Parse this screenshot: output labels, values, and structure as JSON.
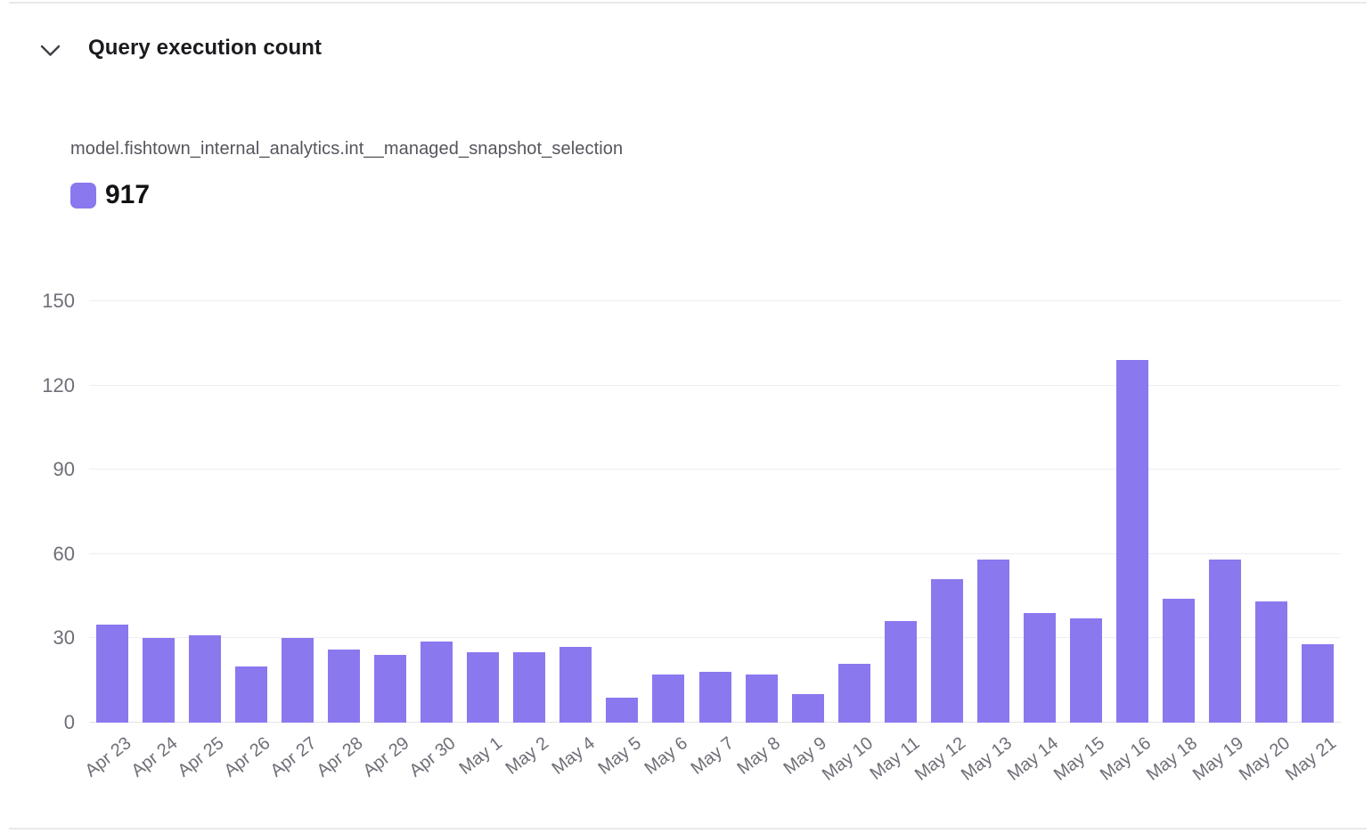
{
  "header": {
    "title": "Query execution count",
    "collapse_icon": "chevron-down"
  },
  "chart_data": {
    "type": "bar",
    "title": "Query execution count",
    "series_name": "model.fishtown_internal_analytics.int__managed_snapshot_selection",
    "legend_value": "917",
    "legend_position": "top-left",
    "categories": [
      "Apr 23",
      "Apr 24",
      "Apr 25",
      "Apr 26",
      "Apr 27",
      "Apr 28",
      "Apr 29",
      "Apr 30",
      "May 1",
      "May 2",
      "May 4",
      "May 5",
      "May 6",
      "May 7",
      "May 8",
      "May 9",
      "May 10",
      "May 11",
      "May 12",
      "May 13",
      "May 14",
      "May 15",
      "May 16",
      "May 18",
      "May 19",
      "May 20",
      "May 21"
    ],
    "values": [
      35,
      30,
      31,
      20,
      30,
      26,
      24,
      29,
      25,
      25,
      27,
      9,
      17,
      18,
      17,
      10,
      21,
      36,
      51,
      58,
      39,
      37,
      129,
      44,
      58,
      43,
      28
    ],
    "xlabel": "",
    "ylabel": "",
    "ylim": [
      0,
      150
    ],
    "yticks": [
      0,
      30,
      60,
      90,
      120,
      150
    ],
    "grid": true,
    "x_label_rotation_deg": -38,
    "bar_color": "#8a78ef",
    "gridline_color": "#eeeef1",
    "axis_label_color": "#6e6e78"
  }
}
